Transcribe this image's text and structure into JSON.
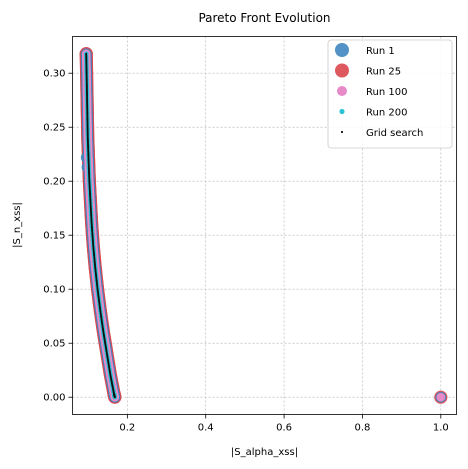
{
  "chart_data": {
    "type": "scatter",
    "title": "Pareto Front Evolution",
    "xlabel": "|S_alpha_xss|",
    "ylabel": "|S_n_xss|",
    "xlim": [
      0.06,
      1.04
    ],
    "ylim": [
      -0.016,
      0.334
    ],
    "xticks": [
      0.2,
      0.4,
      0.6,
      0.8,
      1.0
    ],
    "xtick_labels": [
      "0.2",
      "0.4",
      "0.6",
      "0.8",
      "1.0"
    ],
    "yticks": [
      0.0,
      0.05,
      0.1,
      0.15,
      0.2,
      0.25,
      0.3
    ],
    "ytick_labels": [
      "0.00",
      "0.05",
      "0.10",
      "0.15",
      "0.20",
      "0.25",
      "0.30"
    ],
    "grid": true,
    "legend_position": "top-right",
    "front_curve": [
      [
        0.095,
        0.318
      ],
      [
        0.096,
        0.3
      ],
      [
        0.097,
        0.28
      ],
      [
        0.098,
        0.26
      ],
      [
        0.099,
        0.24
      ],
      [
        0.101,
        0.22
      ],
      [
        0.103,
        0.2
      ],
      [
        0.106,
        0.18
      ],
      [
        0.109,
        0.16
      ],
      [
        0.113,
        0.14
      ],
      [
        0.118,
        0.12
      ],
      [
        0.124,
        0.1
      ],
      [
        0.131,
        0.08
      ],
      [
        0.139,
        0.06
      ],
      [
        0.148,
        0.04
      ],
      [
        0.157,
        0.02
      ],
      [
        0.166,
        0.003
      ],
      [
        0.168,
        0.0
      ]
    ],
    "series": [
      {
        "name": "Run 1",
        "color": "#3f86c0",
        "marker_size": "large",
        "extra_points": [
          [
            0.095,
            0.222
          ],
          [
            0.097,
            0.213
          ],
          [
            1.0,
            0.0
          ]
        ]
      },
      {
        "name": "Run 25",
        "color": "#d9474c",
        "marker_size": "large",
        "extra_points": [
          [
            0.095,
            0.318
          ],
          [
            1.0,
            0.0
          ]
        ]
      },
      {
        "name": "Run 100",
        "color": "#e88ac8",
        "marker_size": "medium",
        "extra_points": [
          [
            1.0,
            0.0
          ]
        ]
      },
      {
        "name": "Run 200",
        "color": "#2bc4d6",
        "marker_size": "small",
        "extra_points": []
      },
      {
        "name": "Grid search",
        "color": "#111111",
        "marker_size": "tiny",
        "extra_points": []
      }
    ]
  }
}
